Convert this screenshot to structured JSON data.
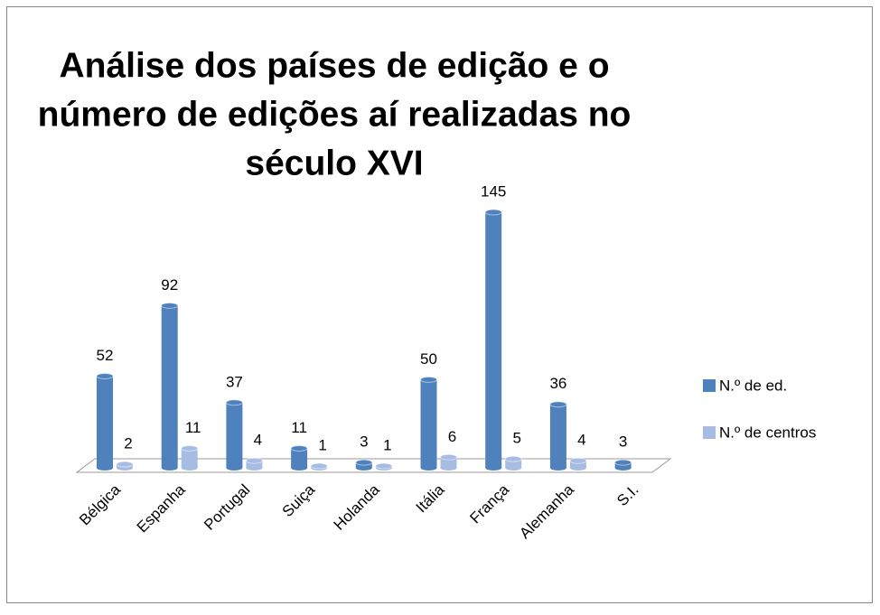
{
  "chart_data": {
    "type": "bar3d",
    "title": [
      "Análise dos países de edição e o",
      "número de edições aí realizadas no",
      "século XVI"
    ],
    "categories": [
      "Bélgica",
      "Espanha",
      "Portugal",
      "Suiça",
      "Holanda",
      "Itália",
      "França",
      "Alemanha",
      "S.I."
    ],
    "series": [
      {
        "name": "N.º de ed.",
        "color": "#4f81bd",
        "values": [
          52,
          92,
          37,
          11,
          3,
          50,
          145,
          36,
          3
        ]
      },
      {
        "name": "N.º de centros",
        "color": "#a7bce3",
        "values": [
          2,
          11,
          4,
          1,
          1,
          6,
          5,
          4,
          null
        ]
      }
    ],
    "legend": "right"
  }
}
